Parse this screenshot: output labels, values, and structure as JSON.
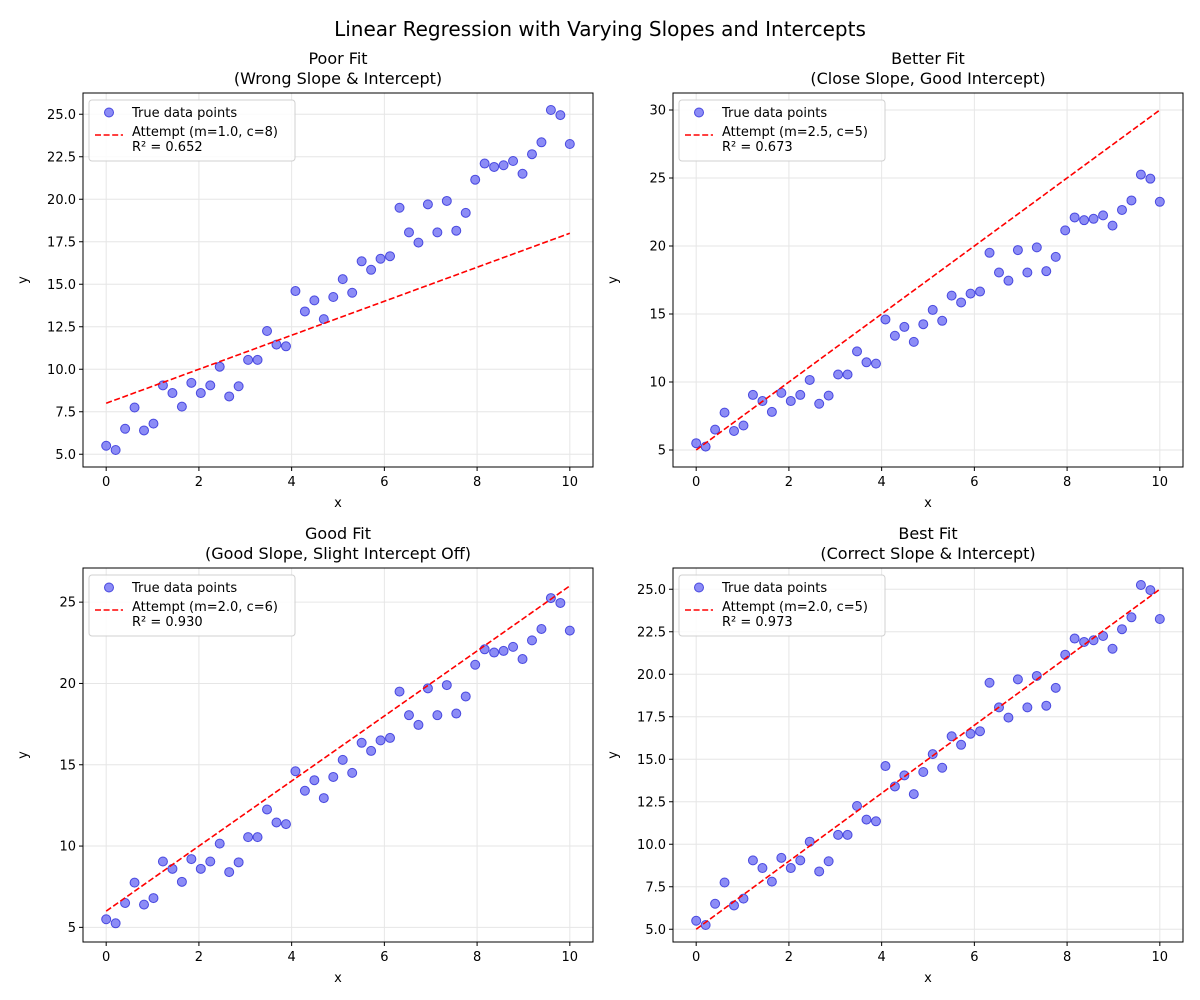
{
  "figure": {
    "suptitle": "Linear Regression with Varying Slopes and Intercepts"
  },
  "style": {
    "point_color": "#4646f0",
    "point_edge": "#2a2ad8",
    "line_color": "#ff0000",
    "grid_color": "#e6e6e6"
  },
  "chart_data": [
    {
      "type": "scatter",
      "title": "Poor Fit\n(Wrong Slope & Intercept)",
      "xlabel": "x",
      "ylabel": "y",
      "xlim": [
        -0.5,
        10.5
      ],
      "ylim": [
        4.25,
        26.25
      ],
      "xticks": [
        0,
        2,
        4,
        6,
        8,
        10
      ],
      "xtick_labels": [
        "0",
        "2",
        "4",
        "6",
        "8",
        "10"
      ],
      "yticks": [
        5,
        7.5,
        10,
        12.5,
        15,
        17.5,
        20,
        22.5,
        25
      ],
      "ytick_labels": [
        "5.0",
        "7.5",
        "10.0",
        "12.5",
        "15.0",
        "17.5",
        "20.0",
        "22.5",
        "25.0"
      ],
      "grid": true,
      "legend_position": "top-left",
      "legend": [
        "True data points",
        "Attempt (m=1.0, c=8)\nR² = 0.652"
      ],
      "fit": {
        "m": 1.0,
        "c": 8,
        "r2": 0.652
      },
      "series": [
        {
          "name": "True data points",
          "use": "points"
        }
      ]
    },
    {
      "type": "scatter",
      "title": "Better Fit\n(Close Slope, Good Intercept)",
      "xlabel": "x",
      "ylabel": "y",
      "xlim": [
        -0.5,
        10.5
      ],
      "ylim": [
        3.75,
        31.25
      ],
      "xticks": [
        0,
        2,
        4,
        6,
        8,
        10
      ],
      "xtick_labels": [
        "0",
        "2",
        "4",
        "6",
        "8",
        "10"
      ],
      "yticks": [
        5,
        10,
        15,
        20,
        25,
        30
      ],
      "ytick_labels": [
        "5",
        "10",
        "15",
        "20",
        "25",
        "30"
      ],
      "grid": true,
      "legend_position": "top-left",
      "legend": [
        "True data points",
        "Attempt (m=2.5, c=5)\nR² = 0.673"
      ],
      "fit": {
        "m": 2.5,
        "c": 5,
        "r2": 0.673
      },
      "series": [
        {
          "name": "True data points",
          "use": "points"
        }
      ]
    },
    {
      "type": "scatter",
      "title": "Good Fit\n(Good Slope, Slight Intercept Off)",
      "xlabel": "x",
      "ylabel": "y",
      "xlim": [
        -0.5,
        10.5
      ],
      "ylim": [
        4.1,
        27.1
      ],
      "xticks": [
        0,
        2,
        4,
        6,
        8,
        10
      ],
      "xtick_labels": [
        "0",
        "2",
        "4",
        "6",
        "8",
        "10"
      ],
      "yticks": [
        5,
        10,
        15,
        20,
        25
      ],
      "ytick_labels": [
        "5",
        "10",
        "15",
        "20",
        "25"
      ],
      "grid": true,
      "legend_position": "top-left",
      "legend": [
        "True data points",
        "Attempt (m=2.0, c=6)\nR² = 0.930"
      ],
      "fit": {
        "m": 2.0,
        "c": 6,
        "r2": 0.93
      },
      "series": [
        {
          "name": "True data points",
          "use": "points"
        }
      ]
    },
    {
      "type": "scatter",
      "title": "Best Fit\n(Correct Slope & Intercept)",
      "xlabel": "x",
      "ylabel": "y",
      "xlim": [
        -0.5,
        10.5
      ],
      "ylim": [
        4.25,
        26.25
      ],
      "xticks": [
        0,
        2,
        4,
        6,
        8,
        10
      ],
      "xtick_labels": [
        "0",
        "2",
        "4",
        "6",
        "8",
        "10"
      ],
      "yticks": [
        5,
        7.5,
        10,
        12.5,
        15,
        17.5,
        20,
        22.5,
        25
      ],
      "ytick_labels": [
        "5.0",
        "7.5",
        "10.0",
        "12.5",
        "15.0",
        "17.5",
        "20.0",
        "22.5",
        "25.0"
      ],
      "grid": true,
      "legend_position": "top-left",
      "legend": [
        "True data points",
        "Attempt (m=2.0, c=5)\nR² = 0.973"
      ],
      "fit": {
        "m": 2.0,
        "c": 5,
        "r2": 0.973
      },
      "series": [
        {
          "name": "True data points",
          "use": "points"
        }
      ]
    }
  ],
  "points": {
    "x": [
      0,
      0.204,
      0.408,
      0.612,
      0.816,
      1.02,
      1.224,
      1.429,
      1.633,
      1.837,
      2.041,
      2.245,
      2.449,
      2.653,
      2.857,
      3.061,
      3.265,
      3.469,
      3.673,
      3.878,
      4.082,
      4.286,
      4.49,
      4.694,
      4.898,
      5.102,
      5.306,
      5.51,
      5.714,
      5.918,
      6.122,
      6.327,
      6.531,
      6.735,
      6.939,
      7.143,
      7.347,
      7.551,
      7.755,
      7.959,
      8.163,
      8.367,
      8.571,
      8.776,
      8.98,
      9.184,
      9.388,
      9.592,
      9.796,
      10
    ],
    "y": [
      5.5,
      5.25,
      6.5,
      7.75,
      6.4,
      6.8,
      9.05,
      8.6,
      7.8,
      9.2,
      8.6,
      9.05,
      10.15,
      8.4,
      9.0,
      10.55,
      10.55,
      12.25,
      11.45,
      11.35,
      14.6,
      13.4,
      14.05,
      12.95,
      14.25,
      15.3,
      14.5,
      16.35,
      15.85,
      16.5,
      16.65,
      19.5,
      18.05,
      17.45,
      19.7,
      18.05,
      19.9,
      18.15,
      19.2,
      21.15,
      22.1,
      21.9,
      22.0,
      22.25,
      21.5,
      22.65,
      23.35,
      25.25,
      24.95,
      23.25
    ]
  }
}
